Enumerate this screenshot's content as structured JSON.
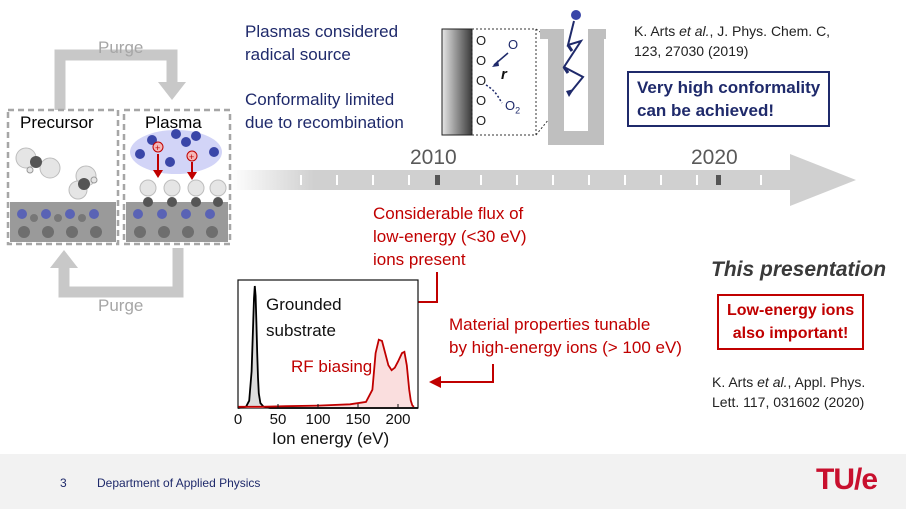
{
  "cycle": {
    "purge_top": "Purge",
    "purge_bottom": "Purge",
    "precursor_label": "Precursor",
    "plasma_label": "Plasma"
  },
  "timeline": {
    "year_1": "2010",
    "year_2": "2020"
  },
  "top_text": {
    "line1": "Plasmas considered",
    "line2": "radical source",
    "line3": "Conformality limited",
    "line4": "due to recombination"
  },
  "inset": {
    "o_label": "O",
    "r_label": "r",
    "o2_label": "O",
    "o2_sub": "2"
  },
  "citation_1": {
    "author": "K. Arts ",
    "etal": "et al.",
    "rest_line1": ", J. Phys. Chem. C,",
    "line2": "123, 27030 (2019)"
  },
  "conformality_box": {
    "line1": "Very high conformality",
    "line2": "can be achieved!"
  },
  "flux_text": {
    "line1": "Considerable flux of",
    "line2": "low-energy (<30 eV)",
    "line3": "ions present"
  },
  "material_text": {
    "line1": "Material properties tunable",
    "line2": "by high-energy ions (> 100 eV)"
  },
  "presentation": {
    "title": "This presentation",
    "box_line1": "Low-energy ions",
    "box_line2": "also important!"
  },
  "citation_2": {
    "author": "K. Arts ",
    "etal": "et al.",
    "rest_line1": ", Appl. Phys.",
    "line2": "Lett. 117, 031602 (2020)"
  },
  "footer": {
    "page_number": "3",
    "department": "Department of Applied Physics",
    "logo": "TU/e"
  },
  "chart_data": {
    "type": "line",
    "xlabel": "Ion energy (eV)",
    "ylabel": "",
    "xlim": [
      0,
      225
    ],
    "ticks": [
      0,
      50,
      100,
      150,
      200
    ],
    "tick_labels": [
      "0",
      "50",
      "100",
      "150",
      "200"
    ],
    "series": [
      {
        "name": "Grounded substrate",
        "color": "#000000",
        "x": [
          0,
          10,
          14,
          17,
          19,
          20,
          21,
          22,
          23,
          24,
          25,
          26,
          28,
          32,
          40,
          225
        ],
        "y": [
          0,
          0.01,
          0.06,
          0.3,
          0.7,
          0.9,
          1.0,
          0.92,
          0.7,
          0.45,
          0.25,
          0.12,
          0.04,
          0.01,
          0,
          0
        ]
      },
      {
        "name": "RF biasing",
        "color": "#c00000",
        "x": [
          0,
          30,
          60,
          100,
          140,
          160,
          168,
          172,
          176,
          180,
          184,
          188,
          192,
          196,
          200,
          205,
          208,
          211,
          214,
          216,
          218,
          220
        ],
        "y": [
          0.01,
          0.01,
          0.015,
          0.02,
          0.03,
          0.05,
          0.15,
          0.45,
          0.56,
          0.55,
          0.45,
          0.35,
          0.31,
          0.33,
          0.38,
          0.45,
          0.46,
          0.35,
          0.15,
          0.06,
          0.02,
          0.01
        ]
      }
    ],
    "annotations": [
      "Grounded",
      "substrate",
      "RF biasing"
    ]
  }
}
